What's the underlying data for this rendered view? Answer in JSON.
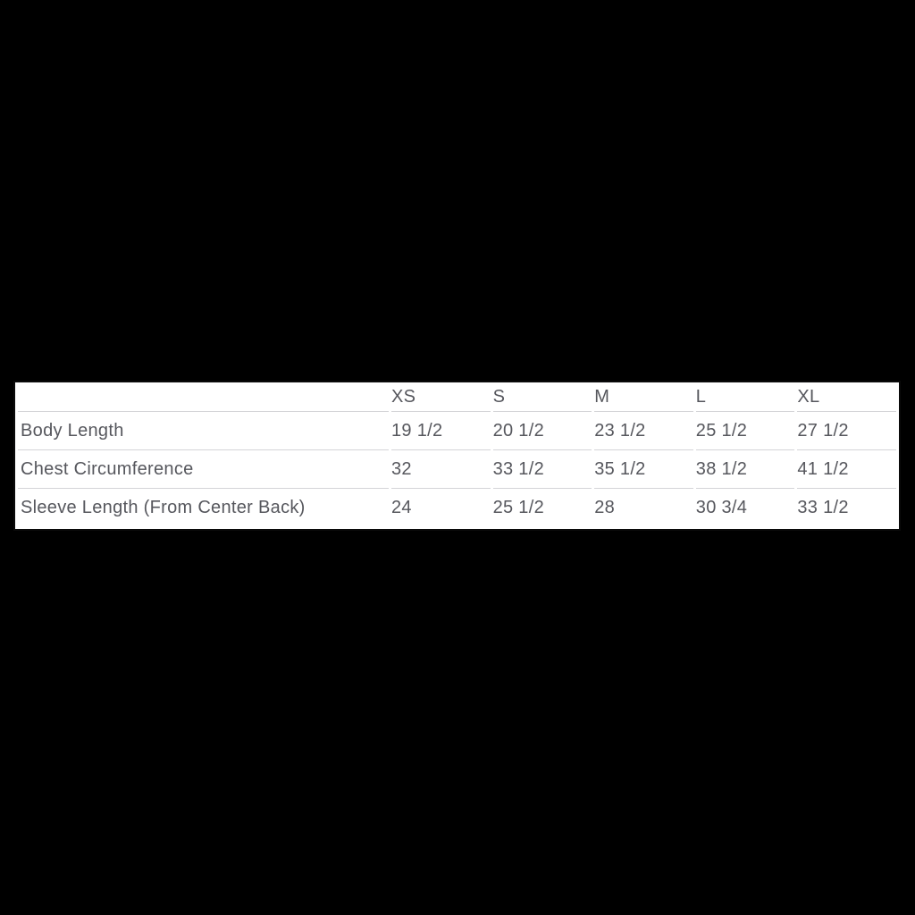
{
  "page": {
    "background_color": "#000000"
  },
  "size_chart": {
    "table_background": "#ffffff",
    "text_color": "#56575d",
    "divider_color": "#d4d4d7",
    "border_color": "#0a0a0a"
  },
  "chart_data": {
    "type": "table",
    "columns": [
      "XS",
      "S",
      "M",
      "L",
      "XL"
    ],
    "rows": [
      {
        "label": "Body Length",
        "values": [
          "19 1/2",
          "20 1/2",
          "23 1/2",
          "25 1/2",
          "27 1/2"
        ]
      },
      {
        "label": "Chest Circumference",
        "values": [
          "32",
          "33 1/2",
          "35 1/2",
          "38 1/2",
          "41 1/2"
        ]
      },
      {
        "label": "Sleeve Length (From Center Back)",
        "values": [
          "24",
          "25 1/2",
          "28",
          "30 3/4",
          "33 1/2"
        ]
      }
    ],
    "layout": {
      "header_position": "top",
      "row_labels_position": "left",
      "grid": "horizontal-dividers-only"
    }
  }
}
